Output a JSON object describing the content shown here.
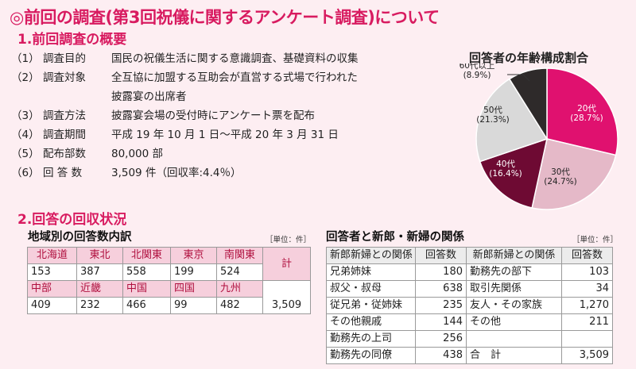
{
  "title": "◎前回の調査(第3回祝儀に関するアンケート調査)について",
  "section1": {
    "heading": "1.前回調査の概要",
    "rows": [
      {
        "num": "（1）",
        "label": "調査目的",
        "value": "国民の祝儀生活に関する意識調査、基礎資料の収集"
      },
      {
        "num": "（2）",
        "label": "調査対象",
        "value": "全互協に加盟する互助会が直営する式場で行われた"
      },
      {
        "num": "（3）",
        "label": "調査方法",
        "value": "披露宴会場の受付時にアンケート票を配布"
      },
      {
        "num": "（4）",
        "label": "調査期間",
        "value": "平成 19 年 10 月 1 日〜平成 20 年 3 月 31 日"
      },
      {
        "num": "（5）",
        "label": "配布部数",
        "value": "80,000 部"
      },
      {
        "num": "（6）",
        "label": "回 答 数",
        "value": "3,509 件（回収率:4.4％）"
      }
    ],
    "row2_continuation": "披露宴の出席者"
  },
  "section2": {
    "heading": "2.回答の回収状況",
    "regional": {
      "title": "地域別の回答数内訳",
      "unit": "［単位：件］",
      "row1_headers": [
        "北海道",
        "東北",
        "北関東",
        "東京",
        "南関東"
      ],
      "row1_values": [
        "153",
        "387",
        "558",
        "199",
        "524"
      ],
      "row2_headers": [
        "中部",
        "近畿",
        "中国",
        "四国",
        "九州"
      ],
      "row2_values": [
        "409",
        "232",
        "466",
        "99",
        "482"
      ],
      "total_header": "計",
      "total_value": "3,509"
    },
    "relation": {
      "title": "回答者と新郎・新婦の関係",
      "unit": "［単位：件］",
      "headers": [
        "新郎新婦との関係",
        "回答数",
        "新郎新婦との関係",
        "回答数"
      ],
      "rows": [
        [
          "兄弟姉妹",
          "180",
          "勤務先の部下",
          "103"
        ],
        [
          "叔父・叔母",
          "638",
          "取引先関係",
          "34"
        ],
        [
          "従兄弟・従姉妹",
          "235",
          "友人・その家族",
          "1,270"
        ],
        [
          "その他親戚",
          "144",
          "その他",
          "211"
        ],
        [
          "勤務先の上司",
          "256",
          "",
          ""
        ],
        [
          "勤務先の同僚",
          "438",
          "合　計",
          "3,509"
        ]
      ]
    }
  },
  "chart_data": {
    "type": "pie",
    "title": "回答者の年齢構成割合",
    "slices": [
      {
        "name": "20代",
        "label": "(28.7%)",
        "value": 28.7,
        "color": "#e0116f"
      },
      {
        "name": "30代",
        "label": "(24.7%)",
        "value": 24.7,
        "color": "#e5b9c8"
      },
      {
        "name": "40代",
        "label": "(16.4%)",
        "value": 16.4,
        "color": "#6e0a33"
      },
      {
        "name": "50代",
        "label": "(21.3%)",
        "value": 21.3,
        "color": "#d9d9d9"
      },
      {
        "name": "60代以上",
        "label": "(8.9%)",
        "value": 8.9,
        "color": "#2e2a2a"
      }
    ]
  }
}
